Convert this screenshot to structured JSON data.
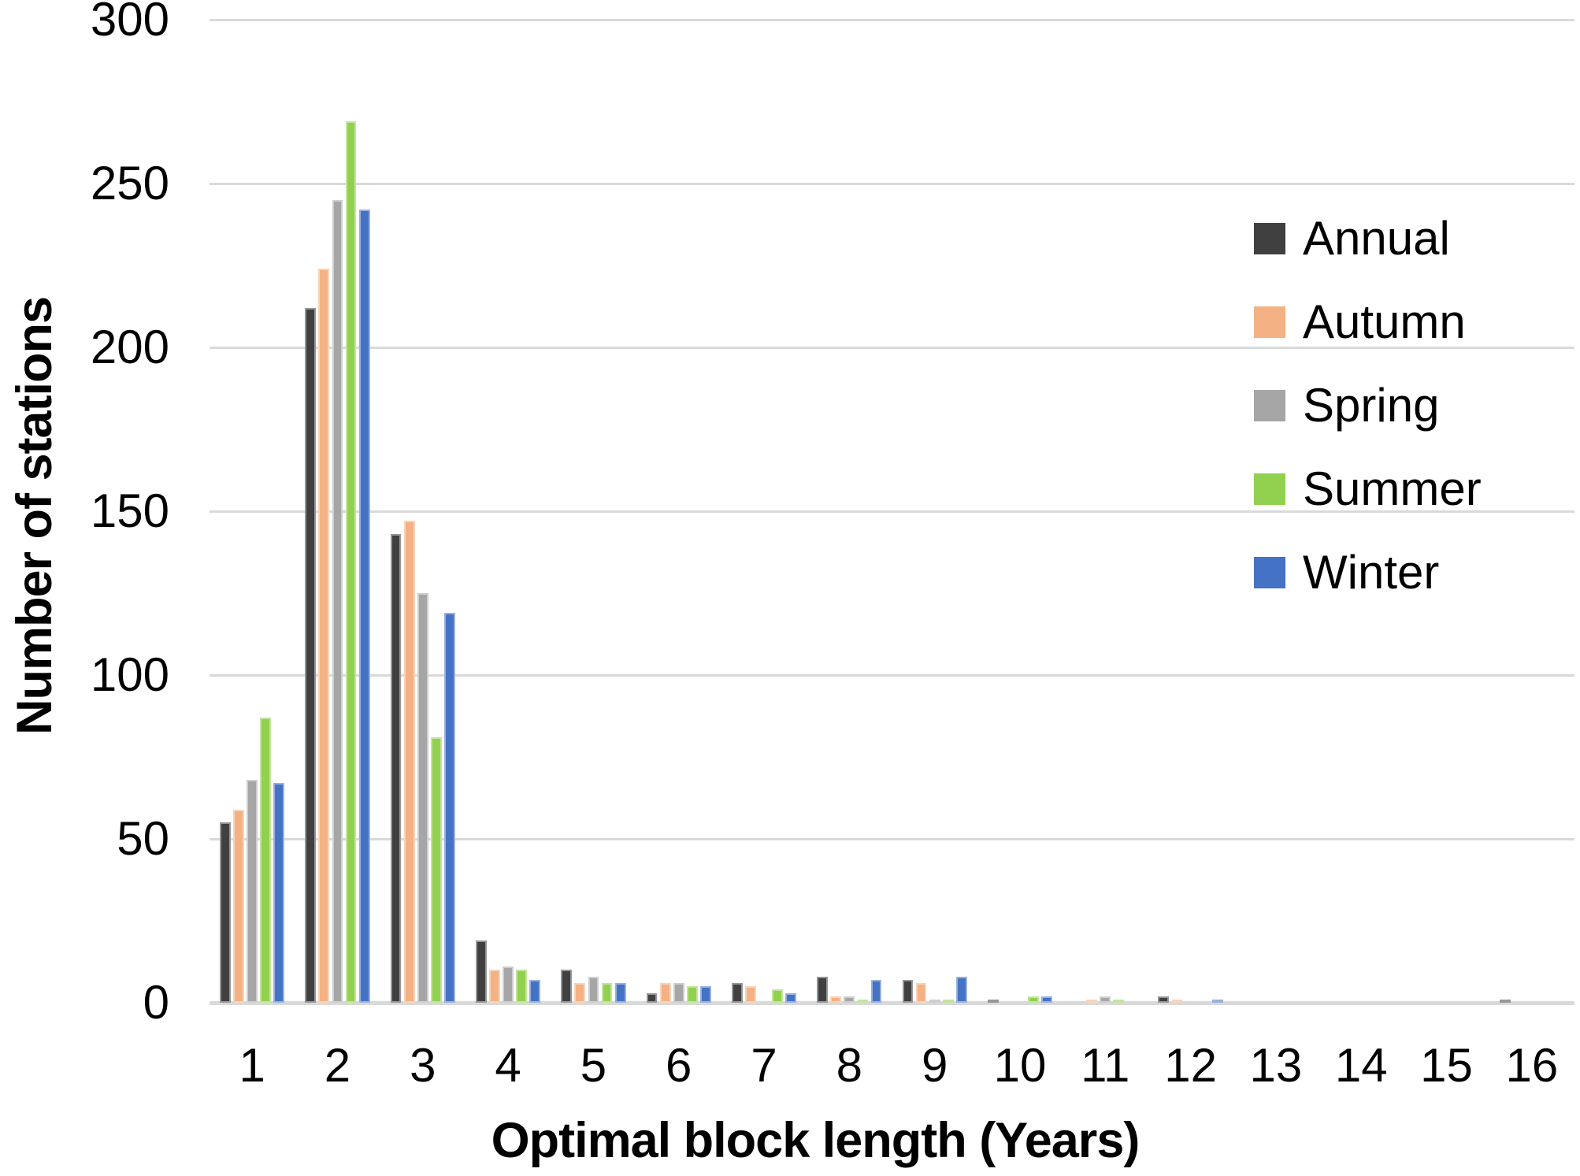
{
  "chart_data": {
    "type": "bar",
    "title": "",
    "xlabel": "Optimal block length (Years)",
    "ylabel": "Number of stations",
    "categories": [
      "1",
      "2",
      "3",
      "4",
      "5",
      "6",
      "7",
      "8",
      "9",
      "10",
      "11",
      "12",
      "13",
      "14",
      "15",
      "16"
    ],
    "ylim": [
      0,
      300
    ],
    "yticks": [
      0,
      50,
      100,
      150,
      200,
      250,
      300
    ],
    "grid": true,
    "legend_position": "right",
    "series": [
      {
        "name": "Annual",
        "color": "#404040",
        "values": [
          55,
          212,
          143,
          19,
          10,
          3,
          6,
          8,
          7,
          1,
          0,
          2,
          0,
          0,
          0,
          1
        ]
      },
      {
        "name": "Autumn",
        "color": "#F4B183",
        "values": [
          59,
          224,
          147,
          10,
          6,
          6,
          5,
          2,
          6,
          0,
          1,
          1,
          0,
          0,
          0,
          0
        ]
      },
      {
        "name": "Spring",
        "color": "#A6A6A6",
        "values": [
          68,
          245,
          125,
          11,
          8,
          6,
          0,
          2,
          1,
          0,
          2,
          0,
          0,
          0,
          0,
          0
        ]
      },
      {
        "name": "Summer",
        "color": "#92D050",
        "values": [
          87,
          269,
          81,
          10,
          6,
          5,
          4,
          1,
          1,
          2,
          1,
          0,
          0,
          0,
          0,
          0
        ]
      },
      {
        "name": "Winter",
        "color": "#4472C4",
        "values": [
          67,
          242,
          119,
          7,
          6,
          5,
          3,
          7,
          8,
          2,
          0,
          1,
          0,
          0,
          0,
          0
        ]
      }
    ],
    "gridline_color": "#D9D9D9",
    "text_color": "#000000"
  }
}
